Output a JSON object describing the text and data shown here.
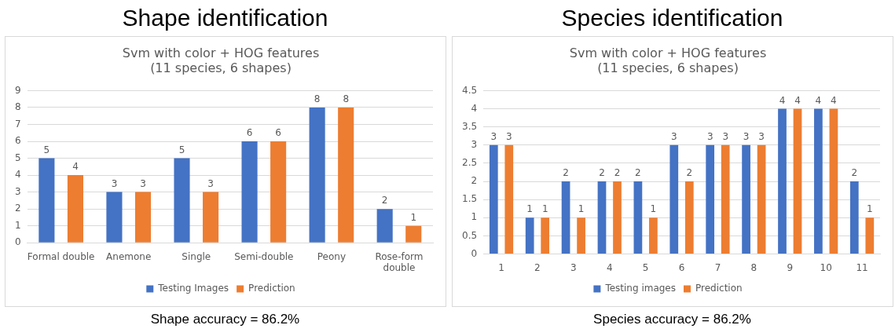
{
  "chart_data": [
    {
      "type": "bar",
      "title": "Shape identification",
      "subtitle": "Svm with color + HOG features\n(11 species, 6 shapes)",
      "categories": [
        "Formal double",
        "Anemone",
        "Single",
        "Semi-double",
        "Peony",
        "Rose-form double"
      ],
      "series": [
        {
          "name": "Testing Images",
          "color": "#4472c4",
          "values": [
            5,
            3,
            5,
            6,
            8,
            2
          ]
        },
        {
          "name": "Prediction",
          "color": "#ed7d31",
          "values": [
            4,
            3,
            3,
            6,
            8,
            1
          ]
        }
      ],
      "ylim": [
        0,
        9
      ],
      "yticks": [
        0,
        1,
        2,
        3,
        4,
        5,
        6,
        7,
        8,
        9
      ],
      "grid": "y",
      "legend": "bottom",
      "data_labels": true,
      "annotations": [
        "Shape accuracy = 86.2%"
      ]
    },
    {
      "type": "bar",
      "title": "Species identification",
      "subtitle": "Svm with color + HOG features\n(11 species, 6 shapes)",
      "categories": [
        "1",
        "2",
        "3",
        "4",
        "5",
        "6",
        "7",
        "8",
        "9",
        "10",
        "11"
      ],
      "series": [
        {
          "name": "Testing images",
          "color": "#4472c4",
          "values": [
            3,
            1,
            2,
            2,
            2,
            3,
            3,
            3,
            4,
            4,
            2
          ]
        },
        {
          "name": "Prediction",
          "color": "#ed7d31",
          "values": [
            3,
            1,
            1,
            2,
            1,
            2,
            3,
            3,
            4,
            4,
            1
          ]
        }
      ],
      "ylim": [
        0,
        4.5
      ],
      "yticks": [
        0,
        0.5,
        1,
        1.5,
        2,
        2.5,
        3,
        3.5,
        4,
        4.5
      ],
      "grid": "y",
      "legend": "bottom",
      "data_labels": true,
      "annotations": [
        "Species accuracy = 86.2%"
      ]
    }
  ]
}
